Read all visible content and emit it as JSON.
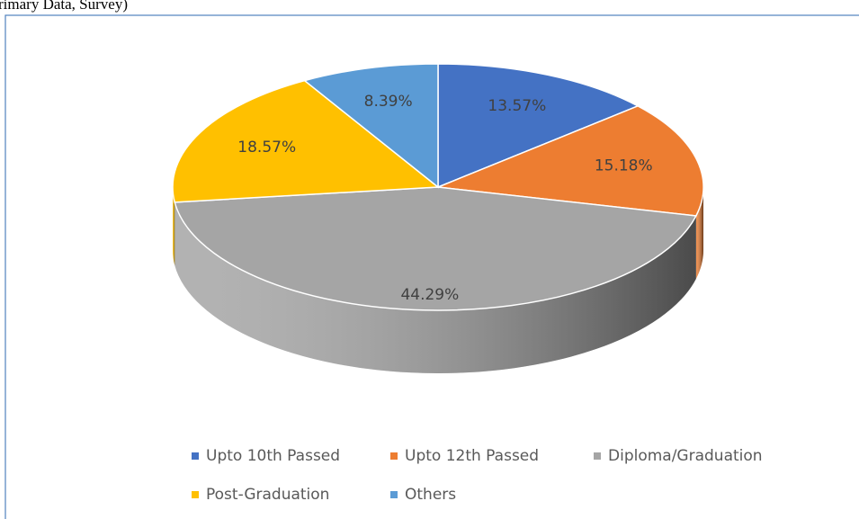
{
  "chart_data": {
    "type": "pie",
    "source": "rimary Data, Survey)",
    "categories": [
      "Upto 10th Passed",
      "Upto 12th Passed",
      "Diploma/Graduation",
      "Post-Graduation",
      "Others"
    ],
    "values": [
      13.57,
      15.18,
      44.29,
      18.57,
      8.39
    ],
    "value_labels": [
      "13.57%",
      "15.18%",
      "44.29%",
      "18.57%",
      "8.39%"
    ],
    "colors": [
      "#4472c4",
      "#ed7d31",
      "#a5a5a5",
      "#ffc000",
      "#5b9bd5"
    ],
    "legend": "bottom"
  }
}
